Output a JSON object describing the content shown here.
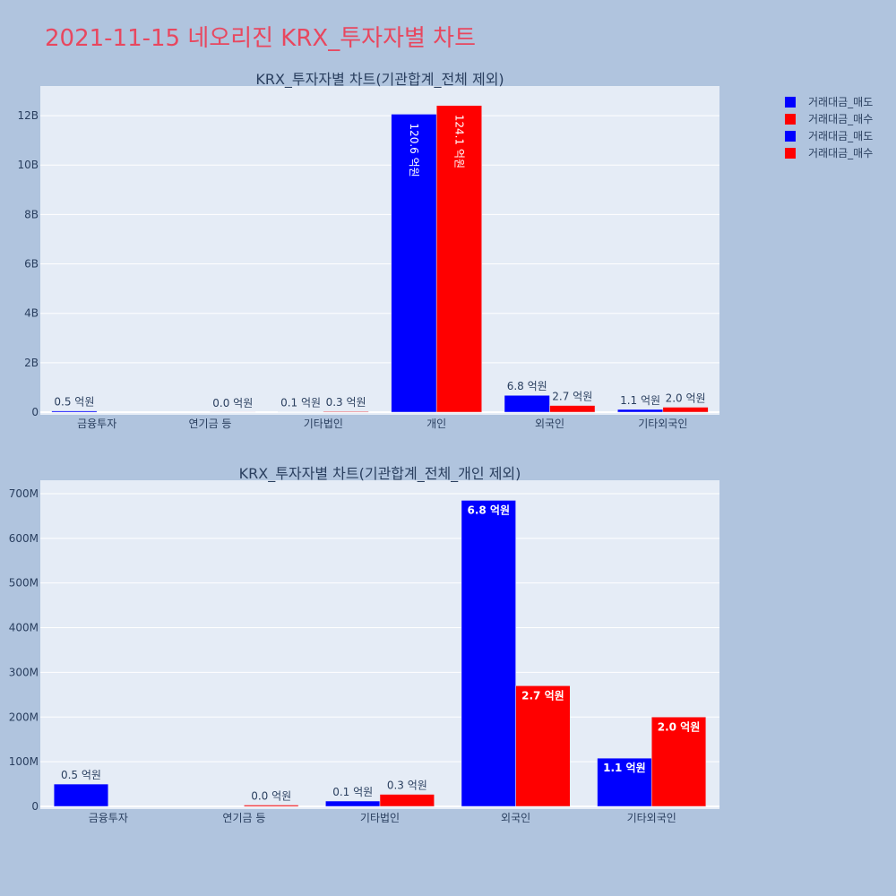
{
  "page_title": "2021-11-15 네오리진 KRX_투자자별 차트",
  "legend": [
    {
      "label": "거래대금_매도",
      "color": "#0000ff"
    },
    {
      "label": "거래대금_매수",
      "color": "#ff0000"
    },
    {
      "label": "거래대금_매도",
      "color": "#0000ff"
    },
    {
      "label": "거래대금_매수",
      "color": "#ff0000"
    }
  ],
  "colors": {
    "sell": "#0000ff",
    "buy": "#ff0000",
    "plot_bg": "#e5ecf6",
    "grid": "#ffffff",
    "text": "#2a3f5f"
  },
  "chart_data": [
    {
      "type": "bar",
      "title": "KRX_투자자별 차트(기관합계_전체 제외)",
      "categories": [
        "금융투자",
        "연기금 등",
        "기타법인",
        "개인",
        "외국인",
        "기타외국인"
      ],
      "ylim": [
        0,
        13200000000
      ],
      "yticks": [
        0,
        2000000000,
        4000000000,
        6000000000,
        8000000000,
        10000000000,
        12000000000
      ],
      "ytick_labels": [
        "0",
        "2B",
        "4B",
        "6B",
        "8B",
        "10B",
        "12B"
      ],
      "grid": true,
      "series": [
        {
          "name": "거래대금_매도",
          "values": [
            50000000,
            0,
            10000000,
            12060000000,
            680000000,
            110000000
          ],
          "labels": [
            "0.5 억원",
            "",
            "0.1 억원",
            "120.6 억원",
            "6.8 억원",
            "1.1 억원"
          ]
        },
        {
          "name": "거래대금_매수",
          "values": [
            0,
            3000000,
            30000000,
            12410000000,
            270000000,
            200000000
          ],
          "labels": [
            "",
            "0.0 억원",
            "0.3 억원",
            "124.1 억원",
            "2.7 억원",
            "2.0 억원"
          ]
        }
      ]
    },
    {
      "type": "bar",
      "title": "KRX_투자자별 차트(기관합계_전체_개인 제외)",
      "categories": [
        "금융투자",
        "연기금 등",
        "기타법인",
        "외국인",
        "기타외국인"
      ],
      "ylim": [
        0,
        730000000
      ],
      "yticks": [
        0,
        100000000,
        200000000,
        300000000,
        400000000,
        500000000,
        600000000,
        700000000
      ],
      "ytick_labels": [
        "0",
        "100M",
        "200M",
        "300M",
        "400M",
        "500M",
        "600M",
        "700M"
      ],
      "grid": true,
      "series": [
        {
          "name": "거래대금_매도",
          "values": [
            50000000,
            0,
            12000000,
            685000000,
            108000000
          ],
          "labels": [
            "0.5 억원",
            "",
            "0.1 억원",
            "6.8 억원",
            "1.1 억원"
          ]
        },
        {
          "name": "거래대금_매수",
          "values": [
            0,
            3000000,
            27000000,
            270000000,
            200000000
          ],
          "labels": [
            "",
            "0.0 억원",
            "0.3 억원",
            "2.7 억원",
            "2.0 억원"
          ]
        }
      ]
    }
  ]
}
